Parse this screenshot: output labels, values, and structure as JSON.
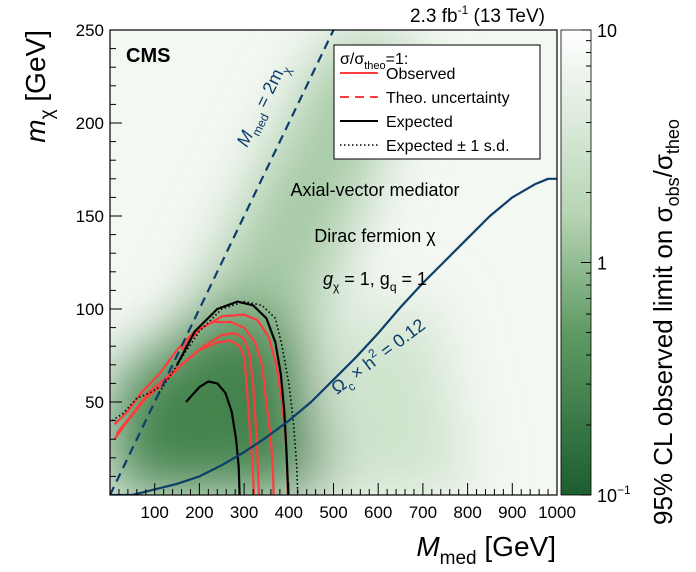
{
  "chart_data": {
    "type": "heatmap",
    "header": {
      "lumi": "2.3 fb",
      "lumi_sup": "-1",
      "energy": " (13 TeV)"
    },
    "experiment_label": "CMS",
    "xaxis": {
      "label": "M",
      "label_sub": "med",
      "label_unit": " [GeV]",
      "range": [
        0,
        1000
      ],
      "ticks": [
        100,
        200,
        300,
        400,
        500,
        600,
        700,
        800,
        900,
        1000
      ]
    },
    "yaxis": {
      "label": "m",
      "label_sub": "χ",
      "label_unit": " [GeV]",
      "range": [
        0,
        250
      ],
      "ticks": [
        50,
        100,
        150,
        200,
        250
      ]
    },
    "zaxis": {
      "label": "95% CL observed limit on σ",
      "label_sub1": "obs",
      "slash": "/σ",
      "label_sub2": "theo",
      "scale": "log",
      "range": [
        0.1,
        10
      ],
      "ticks": [
        {
          "value": 10,
          "label": "10",
          "sup": ""
        },
        {
          "value": 1,
          "label": "1",
          "sup": ""
        },
        {
          "value": 0.1,
          "label": "10",
          "sup": "−1"
        }
      ],
      "colors": [
        "#1c5e2f",
        "#ffffff"
      ]
    },
    "legend": {
      "placement": "top-right",
      "title": {
        "main": "σ/σ",
        "sub": "theo",
        "rest": "=1:"
      },
      "entries": [
        {
          "label": "Observed",
          "color": "#ff3b3b",
          "style": "solid"
        },
        {
          "label": "Theo. uncertainty",
          "color": "#ff3b3b",
          "style": "dashed"
        },
        {
          "label": "Expected",
          "color": "#000000",
          "style": "solid"
        },
        {
          "label": "Expected ± 1 s.d.",
          "color": "#000000",
          "style": "dotted"
        }
      ]
    },
    "annotations": {
      "model": "Axial-vector mediator",
      "fermion": "Dirac fermion χ",
      "coupling_g1": "g",
      "coupling_sub1": "χ",
      "coupling_mid": " = 1, g",
      "coupling_sub2": "q",
      "coupling_end": " = 1",
      "diag_M": "M",
      "diag_sub1": "med",
      "diag_mid": " = 2m",
      "diag_sub2": "χ",
      "relic_1": "Ω",
      "relic_sub": "c",
      "relic_2": " × h",
      "relic_sup": "2",
      "relic_3": " = 0.12"
    },
    "series": [
      {
        "name": "Observed",
        "color": "#ff3b3b",
        "style": "solid",
        "points": [
          [
            10,
            30
          ],
          [
            40,
            40
          ],
          [
            80,
            52
          ],
          [
            120,
            60
          ],
          [
            160,
            70
          ],
          [
            200,
            78
          ],
          [
            240,
            82
          ],
          [
            270,
            83
          ],
          [
            290,
            80
          ],
          [
            300,
            74
          ],
          [
            305,
            62
          ],
          [
            310,
            45
          ],
          [
            315,
            28
          ],
          [
            320,
            12
          ],
          [
            322,
            0
          ]
        ]
      },
      {
        "name": "Observed (theo. uncertainty, upper)",
        "color": "#ff3b3b",
        "style": "solid",
        "points": [
          [
            10,
            38
          ],
          [
            40,
            45
          ],
          [
            70,
            55
          ],
          [
            110,
            65
          ],
          [
            150,
            78
          ],
          [
            190,
            88
          ],
          [
            230,
            93
          ],
          [
            270,
            93
          ],
          [
            300,
            90
          ],
          [
            325,
            82
          ],
          [
            340,
            70
          ],
          [
            350,
            50
          ],
          [
            360,
            30
          ],
          [
            365,
            10
          ],
          [
            366,
            0
          ]
        ]
      },
      {
        "name": "Observed (theo. uncertainty, lower)",
        "color": "#ff3b3b",
        "style": "solid",
        "points": [
          [
            15,
            33
          ],
          [
            45,
            42
          ],
          [
            90,
            56
          ],
          [
            130,
            64
          ],
          [
            170,
            72
          ],
          [
            210,
            80
          ],
          [
            250,
            86
          ],
          [
            280,
            87
          ],
          [
            300,
            84
          ],
          [
            312,
            76
          ],
          [
            320,
            60
          ],
          [
            325,
            42
          ],
          [
            330,
            22
          ],
          [
            333,
            0
          ]
        ]
      },
      {
        "name": "Observed (outer)",
        "color": "#ff3b3b",
        "style": "solid",
        "points": [
          [
            160,
            78
          ],
          [
            200,
            89
          ],
          [
            250,
            96
          ],
          [
            300,
            97
          ],
          [
            330,
            94
          ],
          [
            355,
            85
          ],
          [
            372,
            70
          ],
          [
            385,
            50
          ],
          [
            393,
            30
          ],
          [
            397,
            10
          ],
          [
            398,
            0
          ]
        ]
      },
      {
        "name": "Expected",
        "color": "#000000",
        "style": "solid",
        "points": [
          [
            150,
            70
          ],
          [
            190,
            88
          ],
          [
            240,
            100
          ],
          [
            285,
            104
          ],
          [
            320,
            102
          ],
          [
            350,
            95
          ],
          [
            370,
            82
          ],
          [
            382,
            65
          ],
          [
            390,
            45
          ],
          [
            395,
            22
          ],
          [
            398,
            5
          ],
          [
            399,
            0
          ]
        ]
      },
      {
        "name": "Expected − 1 s.d.",
        "color": "#000000",
        "style": "solid",
        "points": [
          [
            170,
            50
          ],
          [
            200,
            58
          ],
          [
            220,
            61
          ],
          [
            240,
            60
          ],
          [
            258,
            55
          ],
          [
            272,
            45
          ],
          [
            282,
            30
          ],
          [
            288,
            15
          ],
          [
            290,
            0
          ]
        ]
      },
      {
        "name": "Expected ± 1 s.d.",
        "color": "#000000",
        "style": "dotted",
        "points": [
          [
            110,
            55
          ],
          [
            150,
            70
          ],
          [
            200,
            88
          ],
          [
            250,
            100
          ],
          [
            300,
            104
          ],
          [
            340,
            102
          ],
          [
            370,
            95
          ],
          [
            385,
            80
          ],
          [
            400,
            60
          ],
          [
            410,
            40
          ],
          [
            418,
            15
          ],
          [
            420,
            0
          ]
        ]
      },
      {
        "name": "Expected ± 1 s.d. (low mχ)",
        "color": "#000000",
        "style": "dotted",
        "points": [
          [
            5,
            40
          ],
          [
            30,
            44
          ],
          [
            60,
            52
          ],
          [
            90,
            55
          ],
          [
            110,
            58
          ]
        ]
      },
      {
        "name": "M_med = 2m_χ",
        "color": "#0c3d6b",
        "style": "dashed",
        "points": [
          [
            0,
            0
          ],
          [
            100,
            50
          ],
          [
            200,
            100
          ],
          [
            300,
            150
          ],
          [
            400,
            200
          ],
          [
            500,
            250
          ]
        ]
      },
      {
        "name": "Ω_c × h² = 0.12",
        "color": "#0c3d6b",
        "style": "solid",
        "points": [
          [
            0,
            0
          ],
          [
            50,
            0
          ],
          [
            100,
            3
          ],
          [
            150,
            6
          ],
          [
            200,
            10
          ],
          [
            250,
            16
          ],
          [
            300,
            23
          ],
          [
            350,
            31
          ],
          [
            400,
            40
          ],
          [
            450,
            50
          ],
          [
            500,
            62
          ],
          [
            550,
            74
          ],
          [
            600,
            87
          ],
          [
            650,
            101
          ],
          [
            700,
            114
          ],
          [
            750,
            126
          ],
          [
            800,
            138
          ],
          [
            850,
            150
          ],
          [
            900,
            160
          ],
          [
            950,
            167
          ],
          [
            980,
            170
          ],
          [
            1000,
            170
          ]
        ]
      }
    ]
  }
}
